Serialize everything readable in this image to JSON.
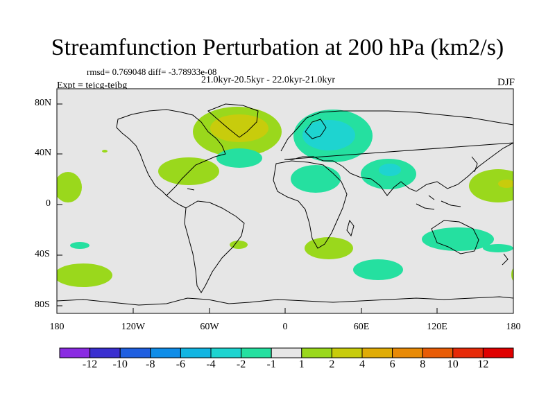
{
  "title": "Streamfunction Perturbation at 200 hPa (km2/s)",
  "stats_line": "rmsd= 0.769048 diff= -3.78933e-08",
  "period_line": "21.0kyr-20.5kyr - 22.0kyr-21.0kyr",
  "experiment_line": "Expt = tejcg-tejbg",
  "season_label": "DJF",
  "lat_ticks": [
    "80N",
    "40N",
    "0",
    "40S",
    "80S"
  ],
  "lon_ticks": [
    "180",
    "120W",
    "60W",
    "0",
    "60E",
    "120E",
    "180"
  ],
  "colorbar": {
    "labels": [
      "-12",
      "-10",
      "-8",
      "-6",
      "-4",
      "-2",
      "-1",
      "1",
      "2",
      "4",
      "6",
      "8",
      "10",
      "12"
    ],
    "colors": [
      "#8a2be2",
      "#3a2fd0",
      "#1f5fe0",
      "#0f8de8",
      "#12b5e2",
      "#1ed4d0",
      "#25e0a0",
      "#e6e6e6",
      "#9ad81c",
      "#c8cc0c",
      "#e0ac06",
      "#e88a06",
      "#e85c06",
      "#e62a08",
      "#e00000"
    ]
  },
  "chart_data": {
    "type": "contour-map",
    "projection": "cylindrical equidistant",
    "lon_range": [
      -180,
      180
    ],
    "lat_range": [
      -90,
      90
    ],
    "units": "km2/s",
    "anomaly_regions": [
      {
        "region": "Greenland / N Atlantic",
        "lon": -40,
        "lat": 65,
        "level": "2 to 4"
      },
      {
        "region": "Eastern United States",
        "lon": -80,
        "lat": 32,
        "level": "1 to 2"
      },
      {
        "region": "Central North Atlantic",
        "lon": -33,
        "lat": 37,
        "level": "-1 to -2"
      },
      {
        "region": "Northern Eurasia",
        "lon": 45,
        "lat": 58,
        "level": "-2 to -4"
      },
      {
        "region": "Middle East / N Africa",
        "lon": 25,
        "lat": 22,
        "level": "-1 to -2"
      },
      {
        "region": "India / Tibet",
        "lon": 80,
        "lat": 28,
        "level": "-2 to -4"
      },
      {
        "region": "Western Pacific subtropics",
        "lon": 178,
        "lat": 15,
        "level": "2 to 4"
      },
      {
        "region": "Eastern Pacific tropics",
        "lon": -172,
        "lat": 10,
        "level": "1 to 2"
      },
      {
        "region": "Australia",
        "lon": 130,
        "lat": -28,
        "level": "-1 to -2"
      },
      {
        "region": "South Africa / SW Indian",
        "lon": 25,
        "lat": -35,
        "level": "1 to 2"
      },
      {
        "region": "Southern Indian Ocean",
        "lon": 75,
        "lat": -50,
        "level": "-1 to -2"
      },
      {
        "region": "South Pacific",
        "lon": -160,
        "lat": -55,
        "level": "1 to 2"
      },
      {
        "region": "Southeast Pacific",
        "lon": -50,
        "lat": -35,
        "level": "1 to 2"
      },
      {
        "region": "Subtropical S Pacific",
        "lon": -160,
        "lat": -32,
        "level": "-1 to -2"
      }
    ]
  }
}
